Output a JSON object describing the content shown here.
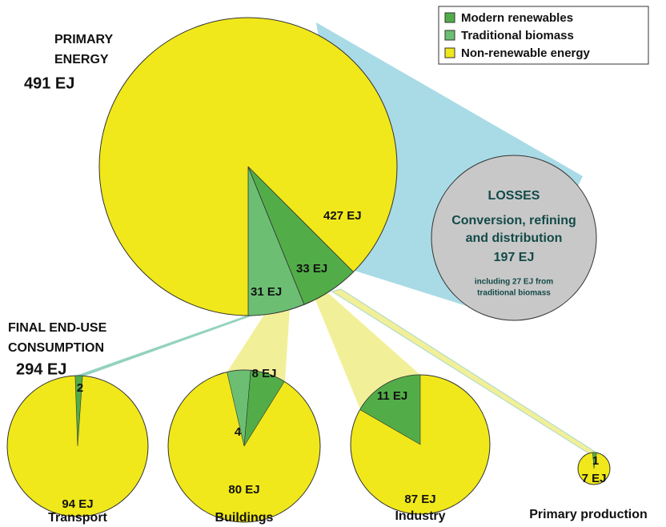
{
  "primary": {
    "title_line1": "PRIMARY",
    "title_line2": "ENERGY",
    "total": "491 EJ",
    "non_renewable": "427 EJ",
    "modern_renewables": "33 EJ",
    "traditional_biomass": "31 EJ"
  },
  "losses": {
    "title": "LOSSES",
    "line1": "Conversion, refining",
    "line2": "and distribution",
    "total": "197 EJ",
    "note_line1": "including 27 EJ from",
    "note_line2": "traditional biomass"
  },
  "final": {
    "title_line1": "FINAL END-USE",
    "title_line2": "CONSUMPTION",
    "total": "294 EJ"
  },
  "sectors": [
    {
      "name": "Transport",
      "non_renewable": "94 EJ",
      "renewable": "2"
    },
    {
      "name": "Buildings",
      "non_renewable": "80 EJ",
      "traditional": "4",
      "modern": "8 EJ"
    },
    {
      "name": "Industry",
      "non_renewable": "87 EJ",
      "modern": "11 EJ"
    },
    {
      "name": "Primary production",
      "non_renewable": "7 EJ",
      "modern": "1"
    }
  ],
  "legend": [
    "Modern renewables",
    "Traditional biomass",
    "Non-renewable energy"
  ]
}
